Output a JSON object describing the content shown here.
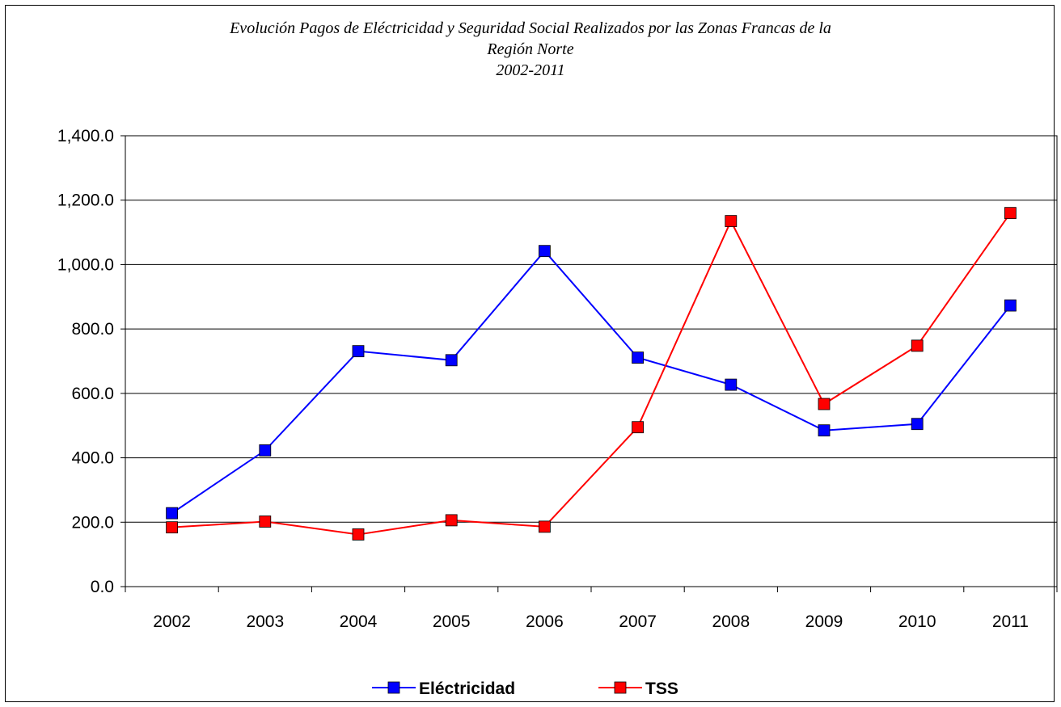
{
  "chart_data": {
    "type": "line",
    "title_lines": [
      "Evolución Pagos de Eléctricidad y Seguridad Social Realizados por  las Zonas Francas de la",
      "Región Norte",
      "2002-2011"
    ],
    "categories": [
      "2002",
      "2003",
      "2004",
      "2005",
      "2006",
      "2007",
      "2008",
      "2009",
      "2010",
      "2011"
    ],
    "series": [
      {
        "name": "Eléctricidad",
        "color": "#0000ff",
        "values": [
          228,
          423,
          731,
          703,
          1042,
          711,
          627,
          485,
          505,
          873
        ]
      },
      {
        "name": "TSS",
        "color": "#ff0000",
        "values": [
          184,
          202,
          162,
          206,
          186,
          495,
          1135,
          567,
          748,
          1160
        ]
      }
    ],
    "ylim": [
      0,
      1400
    ],
    "yticks": [
      "0.0",
      "200.0",
      "400.0",
      "600.0",
      "800.0",
      "1,000.0",
      "1,200.0",
      "1,400.0"
    ],
    "grid": true,
    "legend": "bottom"
  }
}
